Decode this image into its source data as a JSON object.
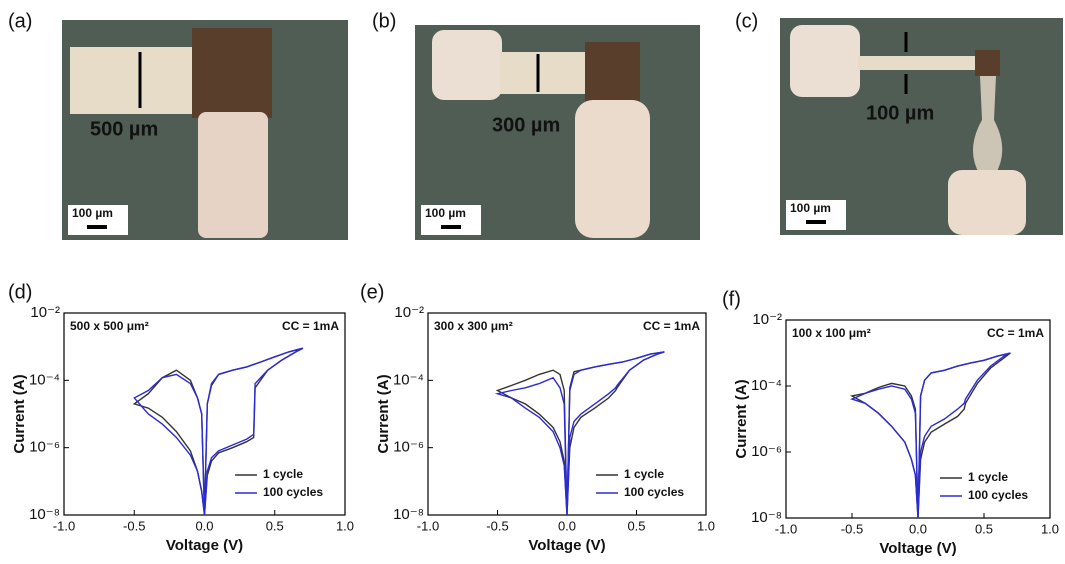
{
  "photos": [
    {
      "label": "(a)",
      "width_label": "500 µm",
      "scale_label": "100 µm"
    },
    {
      "label": "(b)",
      "width_label": "300 µm",
      "scale_label": "100 µm"
    },
    {
      "label": "(c)",
      "width_label": "100 µm",
      "scale_label": "100 µm"
    }
  ],
  "chart_data": [
    {
      "type": "line",
      "label": "(d)",
      "annotation": "500 x 500 μm²",
      "compliance": "CC = 1mA",
      "x_label": "Voltage (V)",
      "y_label": "Current (A)",
      "log_y": true,
      "legend": "lower right",
      "xlim": [
        -1,
        1
      ],
      "xticks": [
        {
          "value": -1,
          "label": "-1.0"
        },
        -0.5,
        {
          "value": 0,
          "label": "0.0"
        },
        0.5,
        {
          "value": 1,
          "label": "1.0"
        }
      ],
      "ylim": [
        1e-08,
        0.01
      ],
      "yticks": [
        {
          "value": 1e-08,
          "label": "10⁻⁸"
        },
        {
          "value": 1e-06,
          "label": "10⁻⁶"
        },
        {
          "value": 0.0001,
          "label": "10⁻⁴"
        },
        {
          "value": 0.01,
          "label": "10⁻²"
        }
      ],
      "x": [
        0,
        0.02,
        0.05,
        0.1,
        0.2,
        0.3,
        0.35,
        0.36,
        0.45,
        0.55,
        0.65,
        0.7,
        0.6,
        0.5,
        0.4,
        0.3,
        0.2,
        0.1,
        0.05,
        0.02,
        0,
        -0.02,
        -0.05,
        -0.1,
        -0.2,
        -0.3,
        -0.4,
        -0.5,
        -0.4,
        -0.3,
        -0.2,
        -0.1,
        -0.05,
        -0.02,
        0
      ],
      "series": [
        {
          "name": "1 cycle",
          "color": "#333333",
          "values": [
            1e-08,
            1.5e-07,
            4e-07,
            7e-07,
            1e-06,
            1.5e-06,
            2e-06,
            6e-05,
            0.0002,
            0.0004,
            0.0007,
            0.0009,
            0.0007,
            0.0005,
            0.00035,
            0.00025,
            0.0002,
            0.00015,
            7e-05,
            2e-05,
            1e-08,
            1e-05,
            3e-05,
            0.0001,
            0.0002,
            0.00012,
            4e-05,
            2e-05,
            1.5e-05,
            8e-06,
            3e-06,
            8e-07,
            2e-07,
            5e-08,
            1e-08
          ]
        },
        {
          "name": "100 cycles",
          "color": "#2b2bd6",
          "values": [
            1e-08,
            2e-07,
            5e-07,
            8e-07,
            1.2e-06,
            1.8e-06,
            2.5e-06,
            8e-05,
            0.0002,
            0.0004,
            0.0007,
            0.0009,
            0.0007,
            0.0005,
            0.00035,
            0.00025,
            0.0002,
            0.00015,
            8e-05,
            2e-05,
            1e-08,
            1e-05,
            3e-05,
            8e-05,
            0.00015,
            0.00012,
            5e-05,
            3e-05,
            1e-05,
            5e-06,
            2e-06,
            6e-07,
            2e-07,
            5e-08,
            1e-08
          ]
        }
      ]
    },
    {
      "type": "line",
      "label": "(e)",
      "annotation": "300 x 300 μm²",
      "compliance": "CC = 1mA",
      "x_label": "Voltage (V)",
      "y_label": "Current (A)",
      "log_y": true,
      "legend": "lower right",
      "xlim": [
        -1,
        1
      ],
      "xticks": [
        {
          "value": -1,
          "label": "-1.0"
        },
        -0.5,
        {
          "value": 0,
          "label": "0.0"
        },
        0.5,
        {
          "value": 1,
          "label": "1.0"
        }
      ],
      "ylim": [
        1e-08,
        0.01
      ],
      "yticks": [
        {
          "value": 1e-08,
          "label": "10⁻⁸"
        },
        {
          "value": 1e-06,
          "label": "10⁻⁶"
        },
        {
          "value": 0.0001,
          "label": "10⁻⁴"
        },
        {
          "value": 0.01,
          "label": "10⁻²"
        }
      ],
      "x": [
        0,
        0.02,
        0.05,
        0.1,
        0.2,
        0.3,
        0.35,
        0.36,
        0.45,
        0.55,
        0.65,
        0.7,
        0.6,
        0.5,
        0.4,
        0.3,
        0.2,
        0.1,
        0.05,
        0.02,
        0,
        -0.02,
        -0.05,
        -0.1,
        -0.2,
        -0.3,
        -0.4,
        -0.5,
        -0.4,
        -0.3,
        -0.2,
        -0.1,
        -0.05,
        -0.02,
        0
      ],
      "series": [
        {
          "name": "1 cycle",
          "color": "#333333",
          "values": [
            1e-08,
            1e-06,
            4e-06,
            8e-06,
            1.5e-05,
            3e-05,
            5e-05,
            6e-05,
            0.0002,
            0.0004,
            0.0006,
            0.0007,
            0.0006,
            0.00045,
            0.00035,
            0.0003,
            0.00025,
            0.0002,
            0.00018,
            6e-05,
            1e-08,
            5e-05,
            0.00015,
            0.0002,
            0.00015,
            0.0001,
            7e-05,
            5e-05,
            3e-05,
            2e-05,
            1e-05,
            4e-06,
            1.5e-06,
            4e-07,
            1e-08
          ]
        },
        {
          "name": "100 cycles",
          "color": "#2b2bd6",
          "values": [
            1e-08,
            2e-06,
            6e-06,
            1e-05,
            2e-05,
            4e-05,
            6e-05,
            7e-05,
            0.0002,
            0.0004,
            0.0006,
            0.0007,
            0.0006,
            0.00045,
            0.00035,
            0.0003,
            0.00025,
            0.0002,
            0.00015,
            5e-05,
            1e-08,
            2e-05,
            6e-05,
            0.00012,
            8e-05,
            6e-05,
            5e-05,
            4e-05,
            3e-05,
            1.5e-05,
            8e-06,
            3e-06,
            1e-06,
            3e-07,
            1e-08
          ]
        }
      ]
    },
    {
      "type": "line",
      "label": "(f)",
      "annotation": "100 x 100 μm²",
      "compliance": "CC = 1mA",
      "x_label": "Voltage (V)",
      "y_label": "Current (A)",
      "log_y": true,
      "legend": "lower right",
      "xlim": [
        -1,
        1
      ],
      "xticks": [
        {
          "value": -1,
          "label": "-1.0"
        },
        -0.5,
        {
          "value": 0,
          "label": "0.0"
        },
        0.5,
        {
          "value": 1,
          "label": "1.0"
        }
      ],
      "ylim": [
        1e-08,
        0.01
      ],
      "yticks": [
        {
          "value": 1e-08,
          "label": "10⁻⁸"
        },
        {
          "value": 1e-06,
          "label": "10⁻⁶"
        },
        {
          "value": 0.0001,
          "label": "10⁻⁴"
        },
        {
          "value": 0.01,
          "label": "10⁻²"
        }
      ],
      "x": [
        0,
        0.02,
        0.05,
        0.1,
        0.2,
        0.3,
        0.35,
        0.36,
        0.45,
        0.55,
        0.65,
        0.7,
        0.6,
        0.5,
        0.4,
        0.3,
        0.2,
        0.1,
        0.05,
        0.02,
        0,
        -0.02,
        -0.05,
        -0.1,
        -0.2,
        -0.3,
        -0.4,
        -0.5,
        -0.4,
        -0.3,
        -0.2,
        -0.1,
        -0.05,
        -0.02,
        0
      ],
      "series": [
        {
          "name": "1 cycle",
          "color": "#333333",
          "values": [
            1e-08,
            6e-07,
            2e-06,
            4e-06,
            7e-06,
            1.2e-05,
            2e-05,
            3e-05,
            0.00012,
            0.00035,
            0.0007,
            0.001,
            0.0008,
            0.0006,
            0.0005,
            0.0004,
            0.0003,
            0.00025,
            0.00015,
            5e-05,
            1e-08,
            2e-05,
            5e-05,
            0.0001,
            0.00012,
            9e-05,
            6e-05,
            5e-05,
            3e-05,
            1.5e-05,
            6e-06,
            2e-06,
            6e-07,
            2e-07,
            1e-08
          ]
        },
        {
          "name": "100 cycles",
          "color": "#2b2bd6",
          "values": [
            1e-08,
            1e-06,
            3e-06,
            6e-06,
            1e-05,
            2e-05,
            3e-05,
            4e-05,
            0.00015,
            0.0004,
            0.0008,
            0.001,
            0.0008,
            0.0006,
            0.0005,
            0.0004,
            0.0003,
            0.00025,
            0.00015,
            5e-05,
            1e-08,
            1.5e-05,
            4e-05,
            8e-05,
            0.0001,
            8e-05,
            6e-05,
            4e-05,
            3e-05,
            1.5e-05,
            6e-06,
            2e-06,
            6e-07,
            2e-07,
            1e-08
          ]
        }
      ]
    }
  ]
}
